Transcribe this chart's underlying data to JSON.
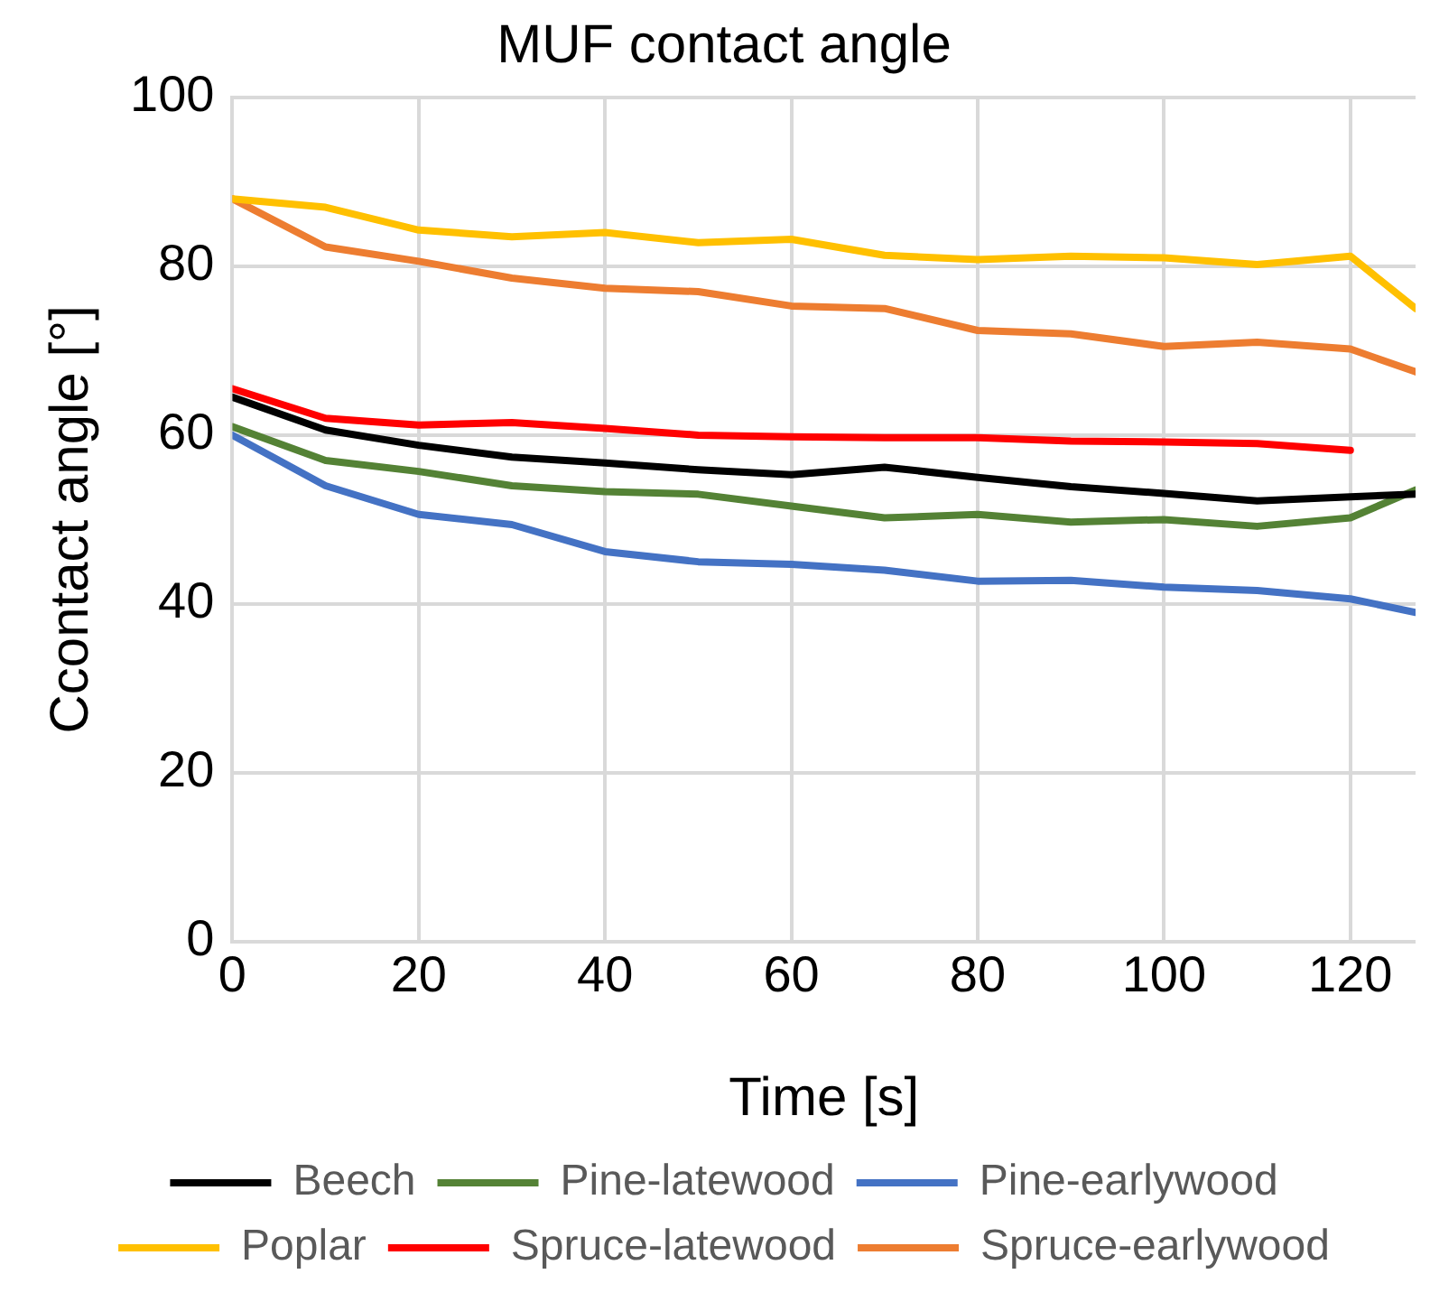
{
  "chart_data": {
    "type": "line",
    "title": "MUF contact angle",
    "xlabel": "Time [s]",
    "ylabel": "Ccontact angle [°]",
    "x": [
      0,
      10,
      20,
      30,
      40,
      50,
      60,
      70,
      80,
      90,
      100,
      110,
      120,
      127
    ],
    "xlim": [
      0,
      127
    ],
    "xticks": [
      0,
      20,
      40,
      60,
      80,
      100,
      120
    ],
    "ylim": [
      0,
      100
    ],
    "yticks": [
      0,
      20,
      40,
      60,
      80,
      100
    ],
    "grid": true,
    "legend": "bottom",
    "marker": "none",
    "line_style": "solid",
    "series": [
      {
        "name": "Beech",
        "color": "#000000",
        "values": [
          64.5,
          60.6,
          58.8,
          57.4,
          56.7,
          55.9,
          55.3,
          56.2,
          55,
          53.9,
          53.1,
          52.2,
          52.7,
          53
        ]
      },
      {
        "name": "Pine-latewood",
        "color": "#548235",
        "values": [
          61,
          57,
          55.7,
          54,
          53.3,
          53,
          51.6,
          50.2,
          50.6,
          49.7,
          50,
          49.2,
          50.2,
          53.5
        ]
      },
      {
        "name": "Pine-earlywood",
        "color": "#4472c4",
        "values": [
          60,
          54,
          50.6,
          49.4,
          46.2,
          45,
          44.7,
          44,
          42.7,
          42.8,
          42,
          41.6,
          40.6,
          39
        ]
      },
      {
        "name": "Poplar",
        "color": "#ffc000",
        "values": [
          88,
          87,
          84.3,
          83.5,
          84,
          82.8,
          83.2,
          81.3,
          80.8,
          81.2,
          81,
          80.2,
          81.2,
          75
        ]
      },
      {
        "name": "Spruce-latewood",
        "color": "#ff0000",
        "values": [
          65.5,
          62,
          61.2,
          61.5,
          60.8,
          60,
          59.8,
          59.7,
          59.7,
          59.3,
          59.2,
          59,
          58.2,
          null
        ]
      },
      {
        "name": "Spruce-earlywood",
        "color": "#ed7d31",
        "values": [
          88,
          82.3,
          80.6,
          78.6,
          77.4,
          77,
          75.3,
          75,
          72.4,
          72,
          70.5,
          71,
          70.2,
          67.5
        ]
      }
    ]
  }
}
